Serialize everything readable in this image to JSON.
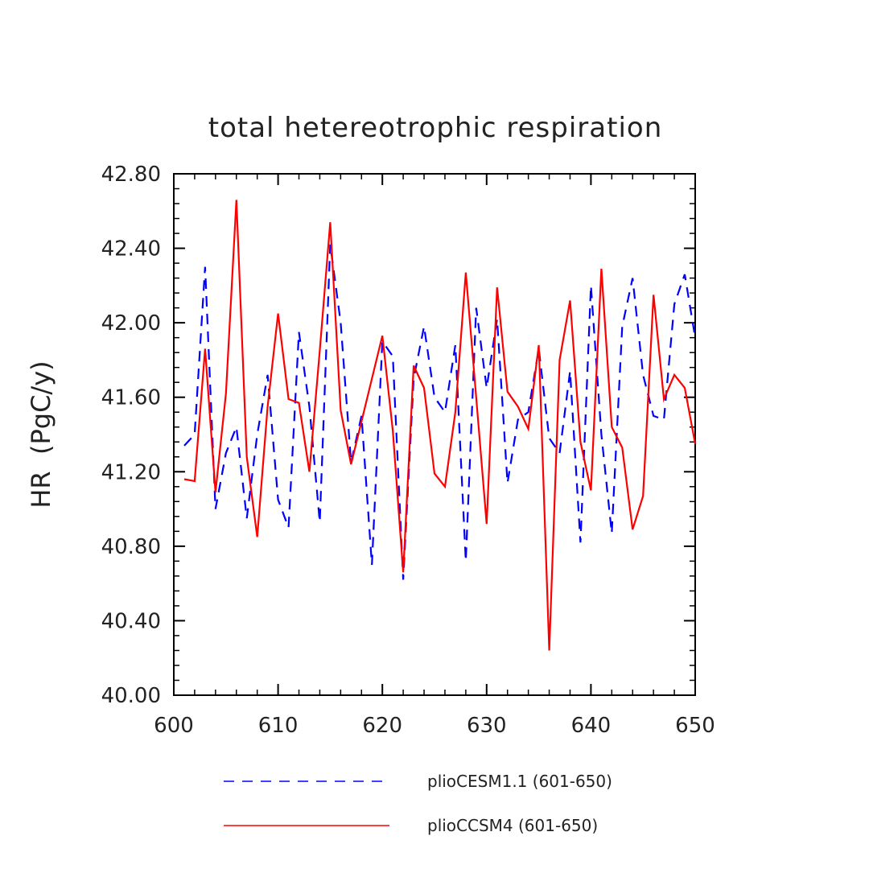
{
  "chart_data": {
    "type": "line",
    "title": "total hetereotrophic respiration",
    "xlabel": "",
    "ylabel": "HR  (PgC/y)",
    "xlim": [
      600,
      650
    ],
    "ylim": [
      40.0,
      42.8
    ],
    "xticks": [
      600,
      610,
      620,
      630,
      640,
      650
    ],
    "xtick_labels": [
      "600",
      "610",
      "620",
      "630",
      "640",
      "650"
    ],
    "yticks": [
      40.0,
      40.4,
      40.8,
      41.2,
      41.6,
      42.0,
      42.4,
      42.8
    ],
    "ytick_labels": [
      "40.00",
      "40.40",
      "40.80",
      "41.20",
      "41.60",
      "42.00",
      "42.40",
      "42.80"
    ],
    "grid": false,
    "legend_position": "bottom",
    "x": [
      601,
      602,
      603,
      604,
      605,
      606,
      607,
      608,
      609,
      610,
      611,
      612,
      613,
      614,
      615,
      616,
      617,
      618,
      619,
      620,
      621,
      622,
      623,
      624,
      625,
      626,
      627,
      628,
      629,
      630,
      631,
      632,
      633,
      634,
      635,
      636,
      637,
      638,
      639,
      640,
      641,
      642,
      643,
      644,
      645,
      646,
      647,
      648,
      649,
      650
    ],
    "series": [
      {
        "name": "plioCESM1.1 (601-650)",
        "color": "#0000ff",
        "style": "dashed",
        "values": [
          41.34,
          41.4,
          42.3,
          41.0,
          41.3,
          41.44,
          40.95,
          41.4,
          41.72,
          41.05,
          40.9,
          41.95,
          41.55,
          40.93,
          42.42,
          42.0,
          41.25,
          41.5,
          40.7,
          41.9,
          41.82,
          40.62,
          41.7,
          41.98,
          41.6,
          41.52,
          41.88,
          40.72,
          42.08,
          41.65,
          42.02,
          41.14,
          41.48,
          41.52,
          41.86,
          41.38,
          41.3,
          41.74,
          40.82,
          42.2,
          41.4,
          40.87,
          41.98,
          42.24,
          41.72,
          41.5,
          41.48,
          42.1,
          42.26,
          41.92
        ]
      },
      {
        "name": "plioCCSM4 (601-650)",
        "color": "#ff0000",
        "style": "solid",
        "values": [
          41.16,
          41.15,
          41.86,
          41.09,
          41.62,
          42.66,
          41.28,
          40.85,
          41.55,
          42.05,
          41.59,
          41.57,
          41.2,
          41.85,
          42.54,
          41.53,
          41.24,
          41.47,
          41.7,
          41.93,
          41.42,
          40.66,
          41.77,
          41.65,
          41.19,
          41.12,
          41.52,
          42.27,
          41.6,
          40.92,
          42.19,
          41.63,
          41.55,
          41.43,
          41.88,
          40.24,
          41.8,
          42.12,
          41.36,
          41.1,
          42.29,
          41.44,
          41.33,
          40.89,
          41.07,
          42.15,
          41.59,
          41.72,
          41.65,
          41.35
        ]
      }
    ]
  }
}
